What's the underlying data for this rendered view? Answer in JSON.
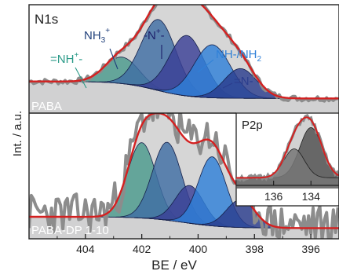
{
  "chart_data": {
    "type": "line",
    "xlabel": "BE / eV",
    "ylabel": "Int. / a.u.",
    "xlim": [
      406,
      395
    ],
    "xticks": [
      404,
      402,
      400,
      398,
      396
    ],
    "panels": [
      {
        "label": "N1s",
        "sample": "PABA",
        "peaks": [
          {
            "label_main": "=NH",
            "label_sup": "+",
            "label_tail": "-",
            "center": 402.7,
            "height": 0.25,
            "width": 0.6,
            "color": "#4a9a8c"
          },
          {
            "label_main": "NH",
            "label_sub": "3",
            "label_sup": "+",
            "center": 401.4,
            "height": 0.67,
            "width": 0.62,
            "color": "#3f6ea4"
          },
          {
            "label_main": "-N",
            "label_sup": "+",
            "label_tail": "-",
            "center": 400.4,
            "height": 0.57,
            "width": 0.62,
            "color": "#3b3f96"
          },
          {
            "label_main": "NH-/NH",
            "label_sub": "2",
            "center": 399.5,
            "height": 0.5,
            "width": 0.65,
            "color": "#2f80d8"
          },
          {
            "label_main": "=N-",
            "center": 398.5,
            "height": 0.28,
            "width": 0.58,
            "color": "#2b3d8e"
          }
        ]
      },
      {
        "sample": "PABA-DP 1-10",
        "peaks": [
          {
            "center": 402.0,
            "height": 0.6,
            "width": 0.5,
            "color": "#4a9a8c"
          },
          {
            "center": 401.1,
            "height": 0.62,
            "width": 0.52,
            "color": "#3f6ea4"
          },
          {
            "center": 400.3,
            "height": 0.3,
            "width": 0.5,
            "color": "#3b3f96"
          },
          {
            "center": 399.5,
            "height": 0.55,
            "width": 0.5,
            "color": "#2f80d8"
          },
          {
            "center": 398.5,
            "height": 0.22,
            "width": 0.5,
            "color": "#2b3d8e"
          }
        ]
      }
    ],
    "inset": {
      "label": "P2p",
      "xticks": [
        136,
        134
      ],
      "xlim": [
        138,
        132.5
      ],
      "peaks": [
        {
          "center": 134.0,
          "height": 0.78,
          "width": 0.6,
          "color": "#555555"
        },
        {
          "center": 134.9,
          "height": 0.45,
          "width": 0.55,
          "color": "#777777"
        }
      ]
    },
    "colors": {
      "envelope": "#d42020",
      "raw": "#8c8c8c",
      "background": "#b8b8b8"
    }
  }
}
